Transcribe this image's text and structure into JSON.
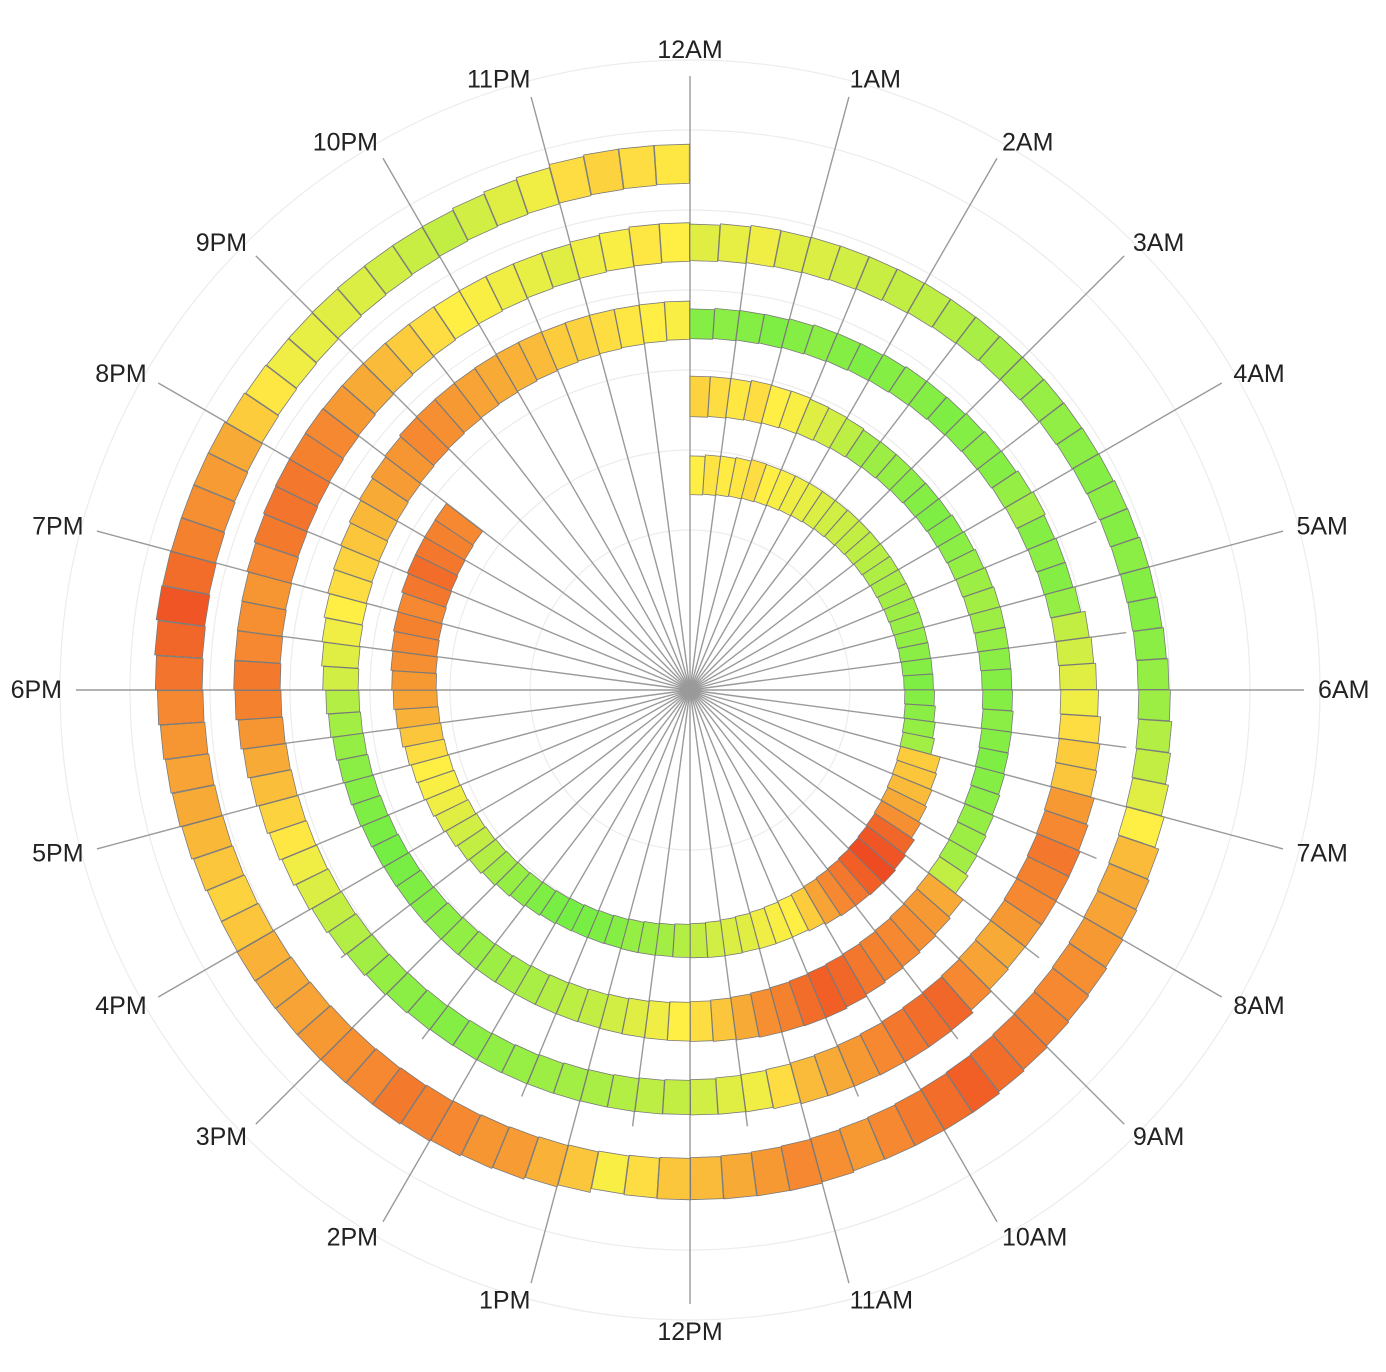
{
  "chart_data": {
    "type": "radial-spiral-bar",
    "title": "",
    "hour_labels": [
      "12AM",
      "1AM",
      "2AM",
      "3AM",
      "4AM",
      "5AM",
      "6AM",
      "7AM",
      "8AM",
      "9AM",
      "10AM",
      "11AM",
      "12PM",
      "1PM",
      "2PM",
      "3PM",
      "4PM",
      "5PM",
      "6PM",
      "7PM",
      "8PM",
      "9PM",
      "10PM",
      "11PM"
    ],
    "segments_per_hour": 4,
    "color_scale": {
      "low": "#66ee44",
      "mid": "#ffee44",
      "high": "#ee4422",
      "min": 0,
      "max": 1
    },
    "series": [
      {
        "name": "",
        "start_hour": 0.0,
        "end_hour": 20.7,
        "values": [
          0.5,
          0.53,
          0.51,
          0.52,
          0.55,
          0.5,
          0.48,
          0.45,
          0.42,
          0.38,
          0.35,
          0.33,
          0.3,
          0.28,
          0.26,
          0.24,
          0.22,
          0.2,
          0.18,
          0.16,
          0.14,
          0.12,
          0.1,
          0.08,
          0.1,
          0.12,
          0.15,
          0.2,
          0.6,
          0.62,
          0.65,
          0.7,
          0.78,
          0.9,
          0.95,
          0.98,
          0.92,
          0.85,
          0.8,
          0.72,
          0.6,
          0.5,
          0.48,
          0.45,
          0.4,
          0.38,
          0.35,
          0.3,
          0.25,
          0.2,
          0.18,
          0.15,
          0.1,
          0.08,
          0.06,
          0.05,
          0.06,
          0.08,
          0.12,
          0.15,
          0.2,
          0.25,
          0.3,
          0.35,
          0.4,
          0.45,
          0.48,
          0.5,
          0.55,
          0.62,
          0.68,
          0.72,
          0.75,
          0.78,
          0.8,
          0.82,
          0.8,
          0.85,
          0.88,
          0.85,
          0.82,
          0.8
        ]
      },
      {
        "name": "",
        "start_hour": 0.0,
        "end_hour": 24.0,
        "values": [
          0.58,
          0.55,
          0.52,
          0.55,
          0.5,
          0.48,
          0.4,
          0.35,
          0.28,
          0.2,
          0.18,
          0.15,
          0.12,
          0.1,
          0.08,
          0.1,
          0.12,
          0.15,
          0.18,
          0.2,
          0.18,
          0.15,
          0.12,
          0.1,
          0.1,
          0.12,
          0.1,
          0.08,
          0.1,
          0.12,
          0.15,
          0.18,
          0.2,
          0.3,
          0.7,
          0.75,
          0.78,
          0.8,
          0.82,
          0.85,
          0.9,
          0.92,
          0.88,
          0.82,
          0.78,
          0.7,
          0.62,
          0.55,
          0.5,
          0.45,
          0.4,
          0.35,
          0.3,
          0.28,
          0.25,
          0.22,
          0.2,
          0.18,
          0.16,
          0.14,
          0.12,
          0.1,
          0.08,
          0.06,
          0.05,
          0.06,
          0.08,
          0.1,
          0.12,
          0.15,
          0.2,
          0.25,
          0.35,
          0.4,
          0.45,
          0.5,
          0.55,
          0.58,
          0.62,
          0.66,
          0.7,
          0.74,
          0.76,
          0.8,
          0.78,
          0.75,
          0.72,
          0.7,
          0.68,
          0.65,
          0.6,
          0.58,
          0.55,
          0.52,
          0.5,
          0.48
        ]
      },
      {
        "name": "",
        "start_hour": 0.0,
        "end_hour": 24.0,
        "values": [
          0.1,
          0.12,
          0.1,
          0.08,
          0.1,
          0.12,
          0.1,
          0.08,
          0.1,
          0.12,
          0.1,
          0.08,
          0.1,
          0.12,
          0.1,
          0.15,
          0.2,
          0.1,
          0.12,
          0.1,
          0.15,
          0.3,
          0.35,
          0.4,
          0.45,
          0.55,
          0.6,
          0.62,
          0.75,
          0.8,
          0.85,
          0.82,
          0.8,
          0.75,
          0.7,
          0.72,
          0.8,
          0.9,
          0.88,
          0.85,
          0.8,
          0.75,
          0.7,
          0.65,
          0.55,
          0.45,
          0.4,
          0.35,
          0.3,
          0.28,
          0.25,
          0.22,
          0.2,
          0.18,
          0.16,
          0.14,
          0.12,
          0.1,
          0.1,
          0.12,
          0.15,
          0.2,
          0.25,
          0.3,
          0.38,
          0.45,
          0.52,
          0.58,
          0.64,
          0.7,
          0.76,
          0.82,
          0.84,
          0.8,
          0.78,
          0.76,
          0.8,
          0.84,
          0.86,
          0.85,
          0.82,
          0.8,
          0.75,
          0.7,
          0.65,
          0.6,
          0.55,
          0.5,
          0.48,
          0.45,
          0.42,
          0.4,
          0.45,
          0.48,
          0.52,
          0.5
        ]
      },
      {
        "name": "",
        "start_hour": 0.0,
        "end_hour": 24.0,
        "values": [
          0.4,
          0.42,
          0.45,
          0.4,
          0.38,
          0.35,
          0.32,
          0.3,
          0.28,
          0.25,
          0.22,
          0.2,
          0.18,
          0.16,
          0.14,
          0.12,
          0.1,
          0.12,
          0.1,
          0.12,
          0.1,
          0.1,
          0.12,
          0.15,
          0.18,
          0.25,
          0.3,
          0.4,
          0.5,
          0.65,
          0.7,
          0.72,
          0.75,
          0.78,
          0.8,
          0.82,
          0.85,
          0.88,
          0.92,
          0.88,
          0.84,
          0.8,
          0.75,
          0.78,
          0.8,
          0.75,
          0.7,
          0.65,
          0.62,
          0.55,
          0.48,
          0.62,
          0.68,
          0.74,
          0.76,
          0.8,
          0.82,
          0.84,
          0.8,
          0.78,
          0.75,
          0.72,
          0.7,
          0.68,
          0.62,
          0.58,
          0.62,
          0.66,
          0.7,
          0.72,
          0.76,
          0.8,
          0.86,
          0.9,
          0.95,
          0.88,
          0.82,
          0.78,
          0.74,
          0.7,
          0.6,
          0.52,
          0.45,
          0.42,
          0.4,
          0.38,
          0.35,
          0.32,
          0.3,
          0.35,
          0.4,
          0.45,
          0.55,
          0.58,
          0.55,
          0.52
        ]
      }
    ]
  }
}
